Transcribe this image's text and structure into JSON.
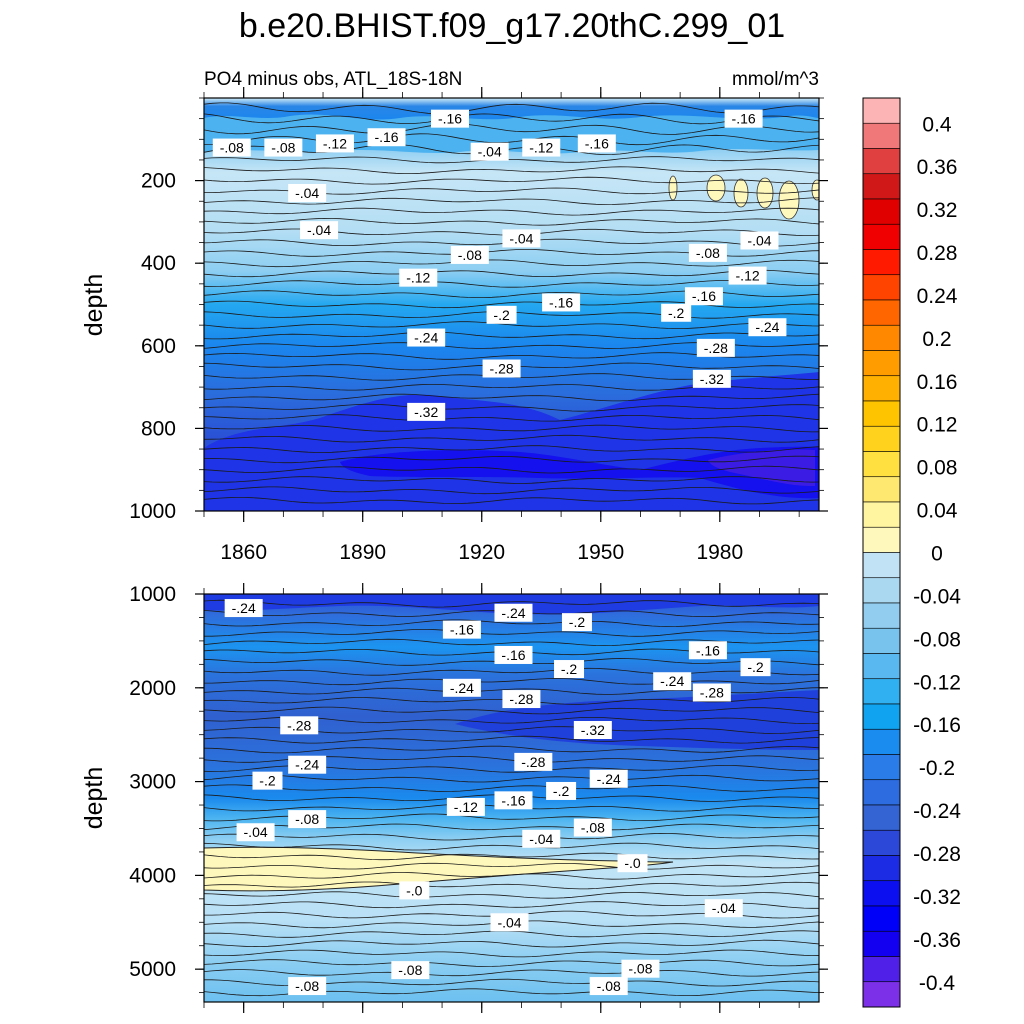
{
  "chart_data": {
    "type": "contour",
    "title": "b.e20.BHIST.f09_g17.20thC.299_01",
    "subtitle_left": "PO4 minus obs, ATL_18S-18N",
    "subtitle_right": "mmol/m^3",
    "x_ticks": [
      "1860",
      "1890",
      "1920",
      "1950",
      "1980"
    ],
    "panels": [
      {
        "name": "upper",
        "ylabel": "depth",
        "y_ticks": [
          "200",
          "400",
          "600",
          "800",
          "1000"
        ],
        "ylim": [
          0,
          1000
        ],
        "xlim": [
          1850,
          2005
        ],
        "contour_labels": [
          {
            "text": "-.08",
            "x": 1857,
            "y": 120
          },
          {
            "text": "-.08",
            "x": 1870,
            "y": 120
          },
          {
            "text": "-.12",
            "x": 1883,
            "y": 110
          },
          {
            "text": "-.16",
            "x": 1896,
            "y": 95
          },
          {
            "text": "-.16",
            "x": 1912,
            "y": 50
          },
          {
            "text": "-.04",
            "x": 1922,
            "y": 130
          },
          {
            "text": "-.12",
            "x": 1935,
            "y": 120
          },
          {
            "text": "-.16",
            "x": 1949,
            "y": 110
          },
          {
            "text": "-.16",
            "x": 1986,
            "y": 50
          },
          {
            "text": "-.04",
            "x": 1876,
            "y": 230
          },
          {
            "text": "-.04",
            "x": 1879,
            "y": 320
          },
          {
            "text": "-.04",
            "x": 1930,
            "y": 340
          },
          {
            "text": "-.08",
            "x": 1917,
            "y": 380
          },
          {
            "text": "-.12",
            "x": 1904,
            "y": 435
          },
          {
            "text": "-.08",
            "x": 1977,
            "y": 375
          },
          {
            "text": "-.04",
            "x": 1990,
            "y": 345
          },
          {
            "text": "-.12",
            "x": 1987,
            "y": 430
          },
          {
            "text": "-.16",
            "x": 1940,
            "y": 495
          },
          {
            "text": "-.16",
            "x": 1976,
            "y": 480
          },
          {
            "text": "-.2",
            "x": 1925,
            "y": 525
          },
          {
            "text": "-.2",
            "x": 1969,
            "y": 520
          },
          {
            "text": "-.24",
            "x": 1906,
            "y": 580
          },
          {
            "text": "-.24",
            "x": 1992,
            "y": 555
          },
          {
            "text": "-.28",
            "x": 1925,
            "y": 655
          },
          {
            "text": "-.28",
            "x": 1979,
            "y": 605
          },
          {
            "text": "-.32",
            "x": 1978,
            "y": 680
          },
          {
            "text": "-.32",
            "x": 1906,
            "y": 760
          }
        ]
      },
      {
        "name": "lower",
        "ylabel": "depth",
        "y_ticks": [
          "1000",
          "2000",
          "3000",
          "4000",
          "5000"
        ],
        "ylim": [
          1000,
          5350
        ],
        "xlim": [
          1850,
          2005
        ],
        "contour_labels": [
          {
            "text": "-.24",
            "x": 1860,
            "y": 1150
          },
          {
            "text": "-.24",
            "x": 1928,
            "y": 1200
          },
          {
            "text": "-.2",
            "x": 1944,
            "y": 1300
          },
          {
            "text": "-.16",
            "x": 1915,
            "y": 1380
          },
          {
            "text": "-.16",
            "x": 1928,
            "y": 1650
          },
          {
            "text": "-.2",
            "x": 1942,
            "y": 1800
          },
          {
            "text": "-.16",
            "x": 1977,
            "y": 1600
          },
          {
            "text": "-.2",
            "x": 1989,
            "y": 1780
          },
          {
            "text": "-.24",
            "x": 1915,
            "y": 2000
          },
          {
            "text": "-.28",
            "x": 1930,
            "y": 2120
          },
          {
            "text": "-.24",
            "x": 1968,
            "y": 1930
          },
          {
            "text": "-.28",
            "x": 1978,
            "y": 2050
          },
          {
            "text": "-.28",
            "x": 1874,
            "y": 2400
          },
          {
            "text": "-.32",
            "x": 1948,
            "y": 2450
          },
          {
            "text": "-.24",
            "x": 1876,
            "y": 2820
          },
          {
            "text": "-.2",
            "x": 1866,
            "y": 2990
          },
          {
            "text": "-.28",
            "x": 1933,
            "y": 2790
          },
          {
            "text": "-.24",
            "x": 1952,
            "y": 2970
          },
          {
            "text": "-.2",
            "x": 1940,
            "y": 3100
          },
          {
            "text": "-.16",
            "x": 1928,
            "y": 3200
          },
          {
            "text": "-.12",
            "x": 1916,
            "y": 3270
          },
          {
            "text": "-.08",
            "x": 1876,
            "y": 3400
          },
          {
            "text": "-.04",
            "x": 1863,
            "y": 3540
          },
          {
            "text": "-.08",
            "x": 1948,
            "y": 3490
          },
          {
            "text": "-.04",
            "x": 1935,
            "y": 3610
          },
          {
            "text": "-.0",
            "x": 1958,
            "y": 3870
          },
          {
            "text": "-.0",
            "x": 1903,
            "y": 4160
          },
          {
            "text": "-.04",
            "x": 1927,
            "y": 4500
          },
          {
            "text": "-.04",
            "x": 1981,
            "y": 4350
          },
          {
            "text": "-.08",
            "x": 1902,
            "y": 5010
          },
          {
            "text": "-.08",
            "x": 1960,
            "y": 4995
          },
          {
            "text": "-.08",
            "x": 1876,
            "y": 5180
          },
          {
            "text": "-.08",
            "x": 1952,
            "y": 5180
          }
        ]
      }
    ],
    "colorbar": {
      "labels": [
        "0.4",
        "0.36",
        "0.32",
        "0.28",
        "0.24",
        "0.2",
        "0.16",
        "0.12",
        "0.08",
        "0.04",
        "0",
        "-0.04",
        "-0.08",
        "-0.12",
        "-0.16",
        "-0.2",
        "-0.24",
        "-0.28",
        "-0.32",
        "-0.36",
        "-0.4"
      ],
      "colors": [
        "#fcb4b4",
        "#f07878",
        "#e04040",
        "#d01818",
        "#e00000",
        "#f00000",
        "#ff1a00",
        "#ff4400",
        "#ff6600",
        "#ff8800",
        "#ff9c00",
        "#ffb000",
        "#ffc400",
        "#ffd21e",
        "#ffe040",
        "#ffe870",
        "#fff4a0",
        "#fff8bc",
        "#c0e2f4",
        "#aad8f0",
        "#92cdf0",
        "#78c2ee",
        "#5ab8f0",
        "#30b0f0",
        "#10a4f0",
        "#1a8cf0",
        "#2a7ce8",
        "#2c6ce0",
        "#3464d4",
        "#2c48d8",
        "#1c2ce4",
        "#0c10f0",
        "#0000f8",
        "#1400f0",
        "#5020e8",
        "#7c30e8"
      ]
    }
  }
}
